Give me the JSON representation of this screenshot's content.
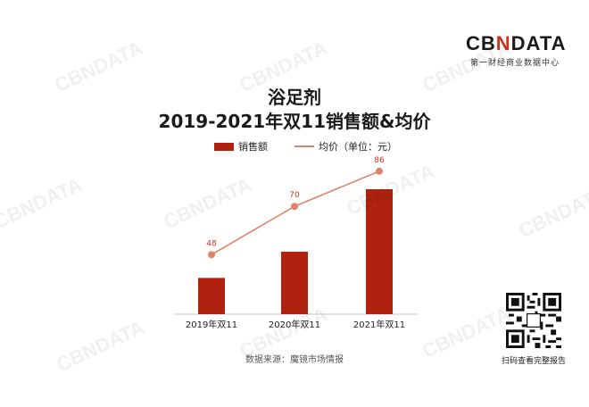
{
  "brand": {
    "logo_left": "CB",
    "logo_mark": "N",
    "logo_right": "DATA",
    "subtitle": "第一财经商业数据中心"
  },
  "title": {
    "line1": "浴足剂",
    "line2": "2019-2021年双11销售额&均价"
  },
  "source": "数据来源：魔镜市场情报",
  "qr_caption": "扫码查看完整报告",
  "watermark": "CBNDATA",
  "colors": {
    "bar": "#b0220f",
    "line": "#e0826a",
    "label": "#c8361e"
  },
  "chart_data": {
    "type": "bar",
    "categories": [
      "2019年双11",
      "2020年双11",
      "2021年双11"
    ],
    "series": [
      {
        "name": "销售额",
        "type": "bar",
        "values": [
          0.29,
          0.5,
          1.0
        ]
      },
      {
        "name": "均价（单位：元）",
        "type": "line",
        "values": [
          48,
          70,
          86
        ]
      }
    ],
    "legend_position": "top",
    "grid": false
  }
}
